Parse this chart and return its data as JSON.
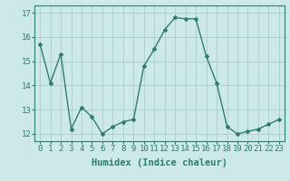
{
  "x": [
    0,
    1,
    2,
    3,
    4,
    5,
    6,
    7,
    8,
    9,
    10,
    11,
    12,
    13,
    14,
    15,
    16,
    17,
    18,
    19,
    20,
    21,
    22,
    23
  ],
  "y": [
    15.7,
    14.1,
    15.3,
    12.2,
    13.1,
    12.7,
    12.0,
    12.3,
    12.5,
    12.6,
    14.8,
    15.5,
    16.3,
    16.8,
    16.75,
    16.75,
    15.2,
    14.1,
    12.3,
    12.0,
    12.1,
    12.2,
    12.4,
    12.6
  ],
  "line_color": "#2e7d6e",
  "marker": "D",
  "marker_size": 2.0,
  "linewidth": 1.0,
  "xlabel": "Humidex (Indice chaleur)",
  "ylim": [
    11.7,
    17.3
  ],
  "xlim": [
    -0.5,
    23.5
  ],
  "yticks": [
    12,
    13,
    14,
    15,
    16,
    17
  ],
  "xtick_labels": [
    "0",
    "1",
    "2",
    "3",
    "4",
    "5",
    "6",
    "7",
    "8",
    "9",
    "10",
    "11",
    "12",
    "13",
    "14",
    "15",
    "16",
    "17",
    "18",
    "19",
    "20",
    "21",
    "22",
    "23"
  ],
  "bg_color": "#cce8e8",
  "grid_color": "#aacccc",
  "xlabel_fontsize": 7.5,
  "tick_fontsize": 6.5,
  "spine_color": "#2e7d6e"
}
